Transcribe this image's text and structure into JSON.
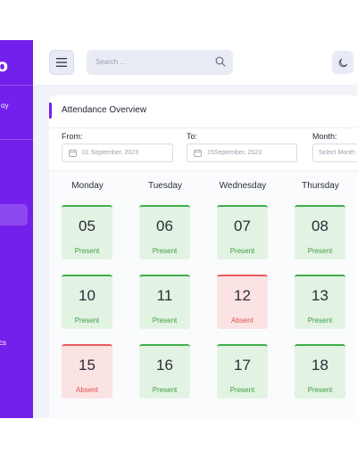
{
  "sidebar": {
    "logo": "o",
    "brand_tail": "oy",
    "menu_fragment": "cs"
  },
  "topbar": {
    "search_placeholder": "Search ..."
  },
  "card": {
    "title": "Attendance Overview",
    "filters": {
      "from_label": "From:",
      "from_value": "01 September, 2023",
      "to_label": "To:",
      "to_value": "15September, 2023",
      "month_label": "Month:",
      "month_value": "Select Month"
    },
    "days": [
      "Monday",
      "Tuesday",
      "Wednesday",
      "Thursday"
    ],
    "tiles": [
      {
        "day": "05",
        "status": "Present"
      },
      {
        "day": "06",
        "status": "Present"
      },
      {
        "day": "07",
        "status": "Present"
      },
      {
        "day": "08",
        "status": "Present"
      },
      {
        "day": "10",
        "status": "Present"
      },
      {
        "day": "11",
        "status": "Present"
      },
      {
        "day": "12",
        "status": "Absent"
      },
      {
        "day": "13",
        "status": "Present"
      },
      {
        "day": "15",
        "status": "Absent"
      },
      {
        "day": "16",
        "status": "Present"
      },
      {
        "day": "17",
        "status": "Present"
      },
      {
        "day": "18",
        "status": "Present"
      }
    ]
  },
  "colors": {
    "brand": "#7420ec",
    "present": "#3fae4a",
    "absent": "#ea5b5b"
  }
}
